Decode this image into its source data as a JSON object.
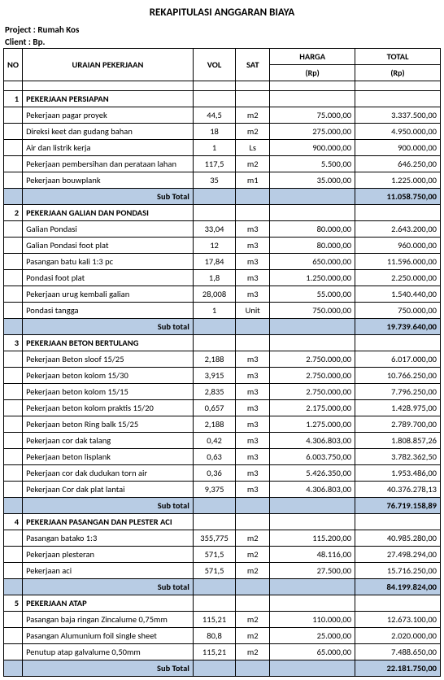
{
  "title": "REKAPITULASI ANGGARAN BIAYA",
  "meta": {
    "project_label": "Project :",
    "project_value": "Rumah Kos",
    "client_label": "Client   :",
    "client_value": "Bp."
  },
  "headers": {
    "no": "NO",
    "desc": "URAIAN PEKERJAAN",
    "vol": "VOL",
    "sat": "SAT",
    "harga": "HARGA",
    "harga_sub": "(Rp)",
    "total": "TOTAL",
    "total_sub": "(Rp)"
  },
  "sections": [
    {
      "no": "1",
      "title": "PEKERJAAN PERSIAPAN",
      "items": [
        {
          "desc": "Pekerjaan pagar proyek",
          "vol": "44,5",
          "sat": "m2",
          "harga": "75.000,00",
          "total": "3.337.500,00"
        },
        {
          "desc": "Direksi keet dan gudang bahan",
          "vol": "18",
          "sat": "m2",
          "harga": "275.000,00",
          "total": "4.950.000,00"
        },
        {
          "desc": "Air dan listrik kerja",
          "vol": "1",
          "sat": "Ls",
          "harga": "900.000,00",
          "total": "900.000,00"
        },
        {
          "desc": "Pekerjaan pembersihan dan perataan lahan",
          "vol": "117,5",
          "sat": "m2",
          "harga": "5.500,00",
          "total": "646.250,00"
        },
        {
          "desc": "Pekerjaan bouwplank",
          "vol": "35",
          "sat": "m1",
          "harga": "35.000,00",
          "total": "1.225.000,00"
        }
      ],
      "subtotal_label": "Sub Total",
      "subtotal": "11.058.750,00"
    },
    {
      "no": "2",
      "title": "PEKERJAAN GALIAN DAN PONDASI",
      "items": [
        {
          "desc": "Galian Pondasi",
          "vol": "33,04",
          "sat": "m3",
          "harga": "80.000,00",
          "total": "2.643.200,00"
        },
        {
          "desc": "Galian Pondasi foot plat",
          "vol": "12",
          "sat": "m3",
          "harga": "80.000,00",
          "total": "960.000,00"
        },
        {
          "desc": "Pasangan batu kali 1:3 pc",
          "vol": "17,84",
          "sat": "m3",
          "harga": "650.000,00",
          "total": "11.596.000,00"
        },
        {
          "desc": "Pondasi foot plat",
          "vol": "1,8",
          "sat": "m3",
          "harga": "1.250.000,00",
          "total": "2.250.000,00"
        },
        {
          "desc": "Pekerjaan urug kembali galian",
          "vol": "28,008",
          "sat": "m3",
          "harga": "55.000,00",
          "total": "1.540.440,00"
        },
        {
          "desc": "Pondasi tangga",
          "vol": "1",
          "sat": "Unit",
          "harga": "750.000,00",
          "total": "750.000,00"
        }
      ],
      "subtotal_label": "Sub total",
      "subtotal": "19.739.640,00"
    },
    {
      "no": "3",
      "title": "PEKERJAAN BETON BERTULANG",
      "items": [
        {
          "desc": "Pekerjaan Beton sloof 15/25",
          "vol": "2,188",
          "sat": "m3",
          "harga": "2.750.000,00",
          "total": "6.017.000,00"
        },
        {
          "desc": "Pekerjaan beton kolom 15/30",
          "vol": "3,915",
          "sat": "m3",
          "harga": "2.750.000,00",
          "total": "10.766.250,00"
        },
        {
          "desc": "Pekerjaan beton kolom 15/15",
          "vol": "2,835",
          "sat": "m3",
          "harga": "2.750.000,00",
          "total": "7.796.250,00"
        },
        {
          "desc": "Pekerjaan beton kolom praktis 15/20",
          "vol": "0,657",
          "sat": "m3",
          "harga": "2.175.000,00",
          "total": "1.428.975,00"
        },
        {
          "desc": "Pekerjaan beton Ring balk 15/25",
          "vol": "2,188",
          "sat": "m3",
          "harga": "1.275.000,00",
          "total": "2.789.700,00"
        },
        {
          "desc": "Pekerjaan cor dak talang",
          "vol": "0,42",
          "sat": "m3",
          "harga": "4.306.803,00",
          "total": "1.808.857,26"
        },
        {
          "desc": "Pekerjaan beton lisplank",
          "vol": "0,63",
          "sat": "m3",
          "harga": "6.003.750,00",
          "total": "3.782.362,50"
        },
        {
          "desc": "Pekerjaan cor dak dudukan torn air",
          "vol": "0,36",
          "sat": "m3",
          "harga": "5.426.350,00",
          "total": "1.953.486,00"
        },
        {
          "desc": "Pekerjaan Cor dak plat lantai",
          "vol": "9,375",
          "sat": "m3",
          "harga": "4.306.803,00",
          "total": "40.376.278,13"
        }
      ],
      "subtotal_label": "Sub total",
      "subtotal": "76.719.158,89"
    },
    {
      "no": "4",
      "title": "PEKERJAAN PASANGAN DAN PLESTER ACI",
      "items": [
        {
          "desc": "Pasangan batako 1:3",
          "vol": "355,775",
          "sat": "m2",
          "harga": "115.200,00",
          "total": "40.985.280,00"
        },
        {
          "desc": "Pekerjaan plesteran",
          "vol": "571,5",
          "sat": "m2",
          "harga": "48.116,00",
          "total": "27.498.294,00"
        },
        {
          "desc": "Pekerjaan aci",
          "vol": "571,5",
          "sat": "m2",
          "harga": "27.500,00",
          "total": "15.716.250,00"
        }
      ],
      "subtotal_label": "Sub total",
      "subtotal": "84.199.824,00"
    },
    {
      "no": "5",
      "title": "PEKERJAAN ATAP",
      "items": [
        {
          "desc": "Pasangan baja ringan Zincalume 0,75mm",
          "vol": "115,21",
          "sat": "m2",
          "harga": "110.000,00",
          "total": "12.673.100,00"
        },
        {
          "desc": "Pasangan Alumunium foil single sheet",
          "vol": "80,8",
          "sat": "m2",
          "harga": "25.000,00",
          "total": "2.020.000,00"
        },
        {
          "desc": "Penutup atap galvalume 0,50mm",
          "vol": "115,21",
          "sat": "m2",
          "harga": "65.000,00",
          "total": "7.488.650,00"
        }
      ],
      "subtotal_label": "Sub Total",
      "subtotal": "22.181.750,00"
    }
  ]
}
